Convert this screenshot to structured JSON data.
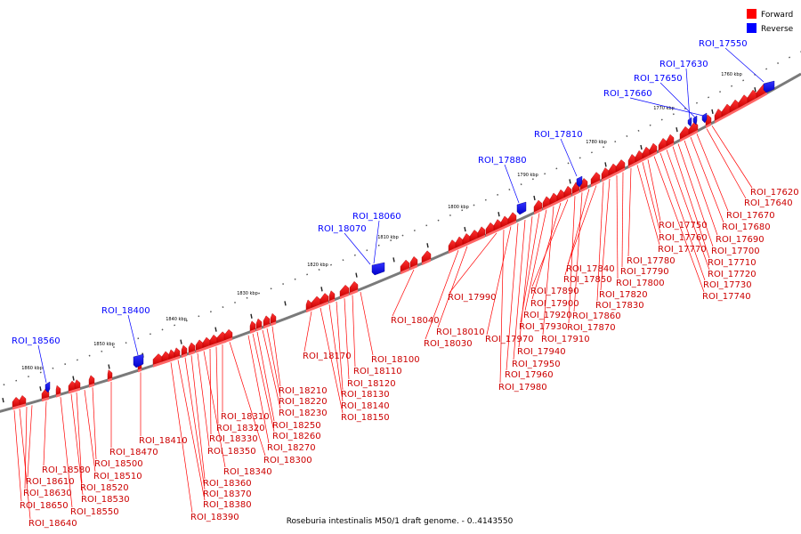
{
  "title": "Roseburia intestinalis M50/1 draft genome. - 0..4143550",
  "legend": [
    {
      "label": "Forward",
      "color": "#ff0000"
    },
    {
      "label": "Reverse",
      "color": "#0000ff"
    }
  ],
  "colors": {
    "forward": "#ff0000",
    "reverse": "#0000ff",
    "backbone": "#808080"
  },
  "tick_labels": [
    "1760 kbp",
    "1770 kbp",
    "1780 kbp",
    "1790 kbp",
    "1800 kbp",
    "1810 kbp",
    "1820 kbp",
    "1830 kbp",
    "1840 kbp",
    "1850 kbp",
    "1860 kbp"
  ],
  "reverse_labels": [
    "ROI_17550",
    "ROI_17630",
    "ROI_17650",
    "ROI_17660",
    "ROI_17810",
    "ROI_17880",
    "ROI_18060",
    "ROI_18070",
    "ROI_18400",
    "ROI_18560"
  ],
  "forward_labels": [
    "ROI_17620",
    "ROI_17640",
    "ROI_17670",
    "ROI_17680",
    "ROI_17690",
    "ROI_17700",
    "ROI_17710",
    "ROI_17720",
    "ROI_17730",
    "ROI_17740",
    "ROI_17750",
    "ROI_17760",
    "ROI_17770",
    "ROI_17780",
    "ROI_17790",
    "ROI_17800",
    "ROI_17820",
    "ROI_17830",
    "ROI_17840",
    "ROI_17850",
    "ROI_17860",
    "ROI_17870",
    "ROI_17890",
    "ROI_17900",
    "ROI_17910",
    "ROI_17920",
    "ROI_17930",
    "ROI_17940",
    "ROI_17950",
    "ROI_17960",
    "ROI_17970",
    "ROI_17980",
    "ROI_17990",
    "ROI_18010",
    "ROI_18030",
    "ROI_18040",
    "ROI_18100",
    "ROI_18110",
    "ROI_18120",
    "ROI_18130",
    "ROI_18140",
    "ROI_18150",
    "ROI_18170",
    "ROI_18210",
    "ROI_18220",
    "ROI_18230",
    "ROI_18250",
    "ROI_18260",
    "ROI_18270",
    "ROI_18300",
    "ROI_18310",
    "ROI_18320",
    "ROI_18330",
    "ROI_18340",
    "ROI_18350",
    "ROI_18360",
    "ROI_18370",
    "ROI_18380",
    "ROI_18390",
    "ROI_18410",
    "ROI_18470",
    "ROI_18500",
    "ROI_18510",
    "ROI_18520",
    "ROI_18530",
    "ROI_18550",
    "ROI_18580",
    "ROI_18610",
    "ROI_18630",
    "ROI_18640",
    "ROI_18650"
  ]
}
